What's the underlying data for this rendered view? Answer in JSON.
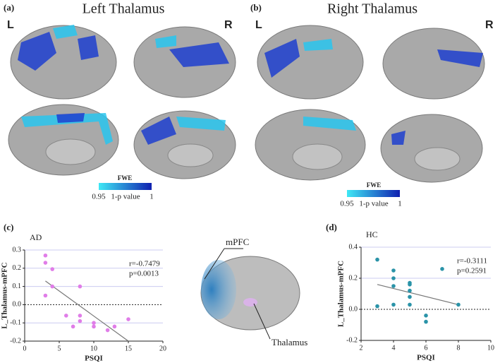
{
  "figure": {
    "panel_a": {
      "letter": "(a)",
      "title": "Left Thalamus",
      "left": "L",
      "right": "R",
      "colorbar_title": "FWE",
      "colorbar_min": "0.95",
      "colorbar_label": "1-p value",
      "colorbar_max": "1"
    },
    "panel_b": {
      "letter": "(b)",
      "title": "Right Thalamus",
      "left": "L",
      "right": "R",
      "colorbar_title": "FWE",
      "colorbar_min": "0.95",
      "colorbar_label": "1-p value",
      "colorbar_max": "1"
    },
    "panel_c_letter": "(c)",
    "panel_d_letter": "(d)",
    "brain_labels": [
      "mPFC",
      "Thalamus"
    ]
  },
  "chart_data": [
    {
      "type": "scatter",
      "title": "AD",
      "x_label": "PSQI",
      "y_label": "L_Thalamus-mPFC",
      "annotations": [
        "r=-0.7479",
        "p=0.0013"
      ],
      "x": [
        3,
        3,
        4,
        3,
        4,
        8,
        6,
        8,
        10,
        10,
        7,
        8,
        12,
        13,
        15
      ],
      "y": [
        0.27,
        0.23,
        0.195,
        0.05,
        0.1,
        0.1,
        -0.06,
        -0.06,
        -0.1,
        -0.12,
        -0.12,
        -0.09,
        -0.14,
        -0.12,
        -0.08
      ],
      "color": "#e07de8",
      "fit": {
        "x": [
          3,
          15
        ],
        "y": [
          0.13,
          -0.2
        ]
      },
      "xlim": [
        0,
        20
      ],
      "xticks": [
        0,
        5,
        10,
        15,
        20
      ],
      "ylim": [
        -0.2,
        0.3
      ],
      "yticks": [
        -0.2,
        -0.1,
        {
          "value": 0,
          "label": "0.0"
        },
        0.1,
        0.2,
        0.3
      ],
      "grid": true
    },
    {
      "type": "scatter",
      "title": "HC",
      "x_label": "PSQI",
      "y_label": "L_Thalamus-mPFC",
      "annotations": [
        "r=-0.3111",
        "p=0.2591"
      ],
      "x": [
        3,
        3,
        4,
        4,
        4,
        4,
        5,
        5,
        5,
        5,
        5,
        6,
        6,
        7,
        8
      ],
      "y": [
        0.32,
        0.02,
        0.25,
        0.2,
        0.15,
        0.03,
        0.17,
        0.16,
        0.12,
        0.08,
        0.03,
        -0.04,
        -0.08,
        0.26,
        0.03
      ],
      "color": "#2a93a8",
      "fit": {
        "x": [
          3,
          8
        ],
        "y": [
          0.16,
          0.03
        ]
      },
      "xlim": [
        2,
        10
      ],
      "xticks": [
        2,
        4,
        6,
        8,
        10
      ],
      "ylim": [
        -0.2,
        0.4
      ],
      "yticks": [
        -0.2,
        {
          "value": 0,
          "label": "0.0"
        },
        0.2,
        0.4
      ],
      "grid": true
    }
  ]
}
